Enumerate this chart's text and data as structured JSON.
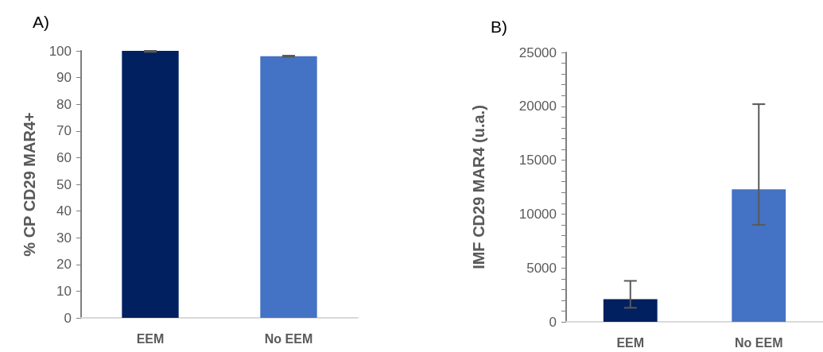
{
  "chart_data": [
    {
      "type": "bar",
      "title": "A)",
      "ylabel": "% CP CD29 MAR4+",
      "categories": [
        "EEM",
        "No EEM"
      ],
      "values": [
        100,
        98
      ],
      "colors": [
        "#002060",
        "#4472c4"
      ],
      "errors": [
        [
          99.6,
          100
        ],
        [
          97.8,
          98.2
        ]
      ],
      "ylim": [
        0,
        100
      ],
      "yticks": [
        0,
        10,
        20,
        30,
        40,
        50,
        60,
        70,
        80,
        90,
        100
      ],
      "grid": false
    },
    {
      "type": "bar",
      "title": "B)",
      "ylabel": "IMF CD29 MAR4 (u.a.)",
      "categories": [
        "EEM",
        "No EEM"
      ],
      "values": [
        2100,
        12300
      ],
      "colors": [
        "#002060",
        "#4472c4"
      ],
      "errors": [
        [
          1300,
          3800
        ],
        [
          9000,
          20200
        ]
      ],
      "ylim": [
        0,
        25000
      ],
      "yticks": [
        0,
        {
          "value": 1000,
          "label": null
        },
        {
          "value": 2000,
          "label": null
        },
        {
          "value": 3000,
          "label": null
        },
        {
          "value": 4000,
          "label": null
        },
        5000,
        {
          "value": 6000,
          "label": null
        },
        {
          "value": 7000,
          "label": null
        },
        {
          "value": 8000,
          "label": null
        },
        {
          "value": 9000,
          "label": null
        },
        10000,
        {
          "value": 11000,
          "label": null
        },
        {
          "value": 12000,
          "label": null
        },
        {
          "value": 13000,
          "label": null
        },
        {
          "value": 14000,
          "label": null
        },
        15000,
        {
          "value": 16000,
          "label": null
        },
        {
          "value": 17000,
          "label": null
        },
        {
          "value": 18000,
          "label": null
        },
        {
          "value": 19000,
          "label": null
        },
        20000,
        {
          "value": 21000,
          "label": null
        },
        {
          "value": 22000,
          "label": null
        },
        {
          "value": 23000,
          "label": null
        },
        {
          "value": 24000,
          "label": null
        },
        25000
      ],
      "grid": false
    }
  ]
}
